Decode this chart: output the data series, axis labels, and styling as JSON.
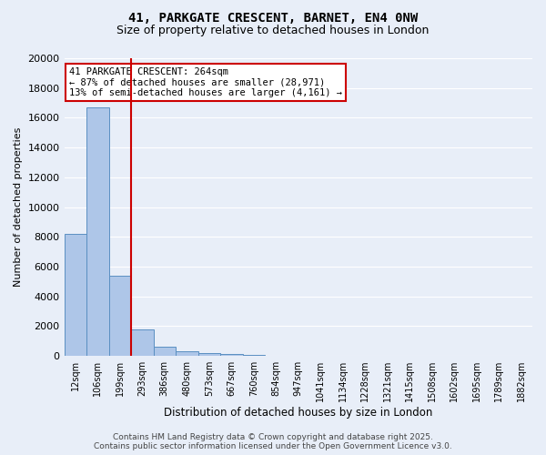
{
  "title_line1": "41, PARKGATE CRESCENT, BARNET, EN4 0NW",
  "title_line2": "Size of property relative to detached houses in London",
  "xlabel": "Distribution of detached houses by size in London",
  "ylabel": "Number of detached properties",
  "bin_labels": [
    "12sqm",
    "106sqm",
    "199sqm",
    "293sqm",
    "386sqm",
    "480sqm",
    "573sqm",
    "667sqm",
    "760sqm",
    "854sqm",
    "947sqm",
    "1041sqm",
    "1134sqm",
    "1228sqm",
    "1321sqm",
    "1415sqm",
    "1508sqm",
    "1602sqm",
    "1695sqm",
    "1789sqm",
    "1882sqm"
  ],
  "bar_heights": [
    8200,
    16700,
    5400,
    1800,
    600,
    300,
    200,
    100,
    50,
    30,
    20,
    15,
    10,
    8,
    5,
    4,
    3,
    2,
    2,
    1,
    0
  ],
  "bar_color": "#aec6e8",
  "bar_edge_color": "#5a8fc2",
  "annotation_text": "41 PARKGATE CRESCENT: 264sqm\n← 87% of detached houses are smaller (28,971)\n13% of semi-detached houses are larger (4,161) →",
  "annotation_box_color": "#ffffff",
  "annotation_border_color": "#cc0000",
  "vline_color": "#cc0000",
  "vline_x": 2.5,
  "ylim": [
    0,
    20000
  ],
  "yticks": [
    0,
    2000,
    4000,
    6000,
    8000,
    10000,
    12000,
    14000,
    16000,
    18000,
    20000
  ],
  "footer_text": "Contains HM Land Registry data © Crown copyright and database right 2025.\nContains public sector information licensed under the Open Government Licence v3.0.",
  "background_color": "#e8eef8",
  "grid_color": "#ffffff"
}
